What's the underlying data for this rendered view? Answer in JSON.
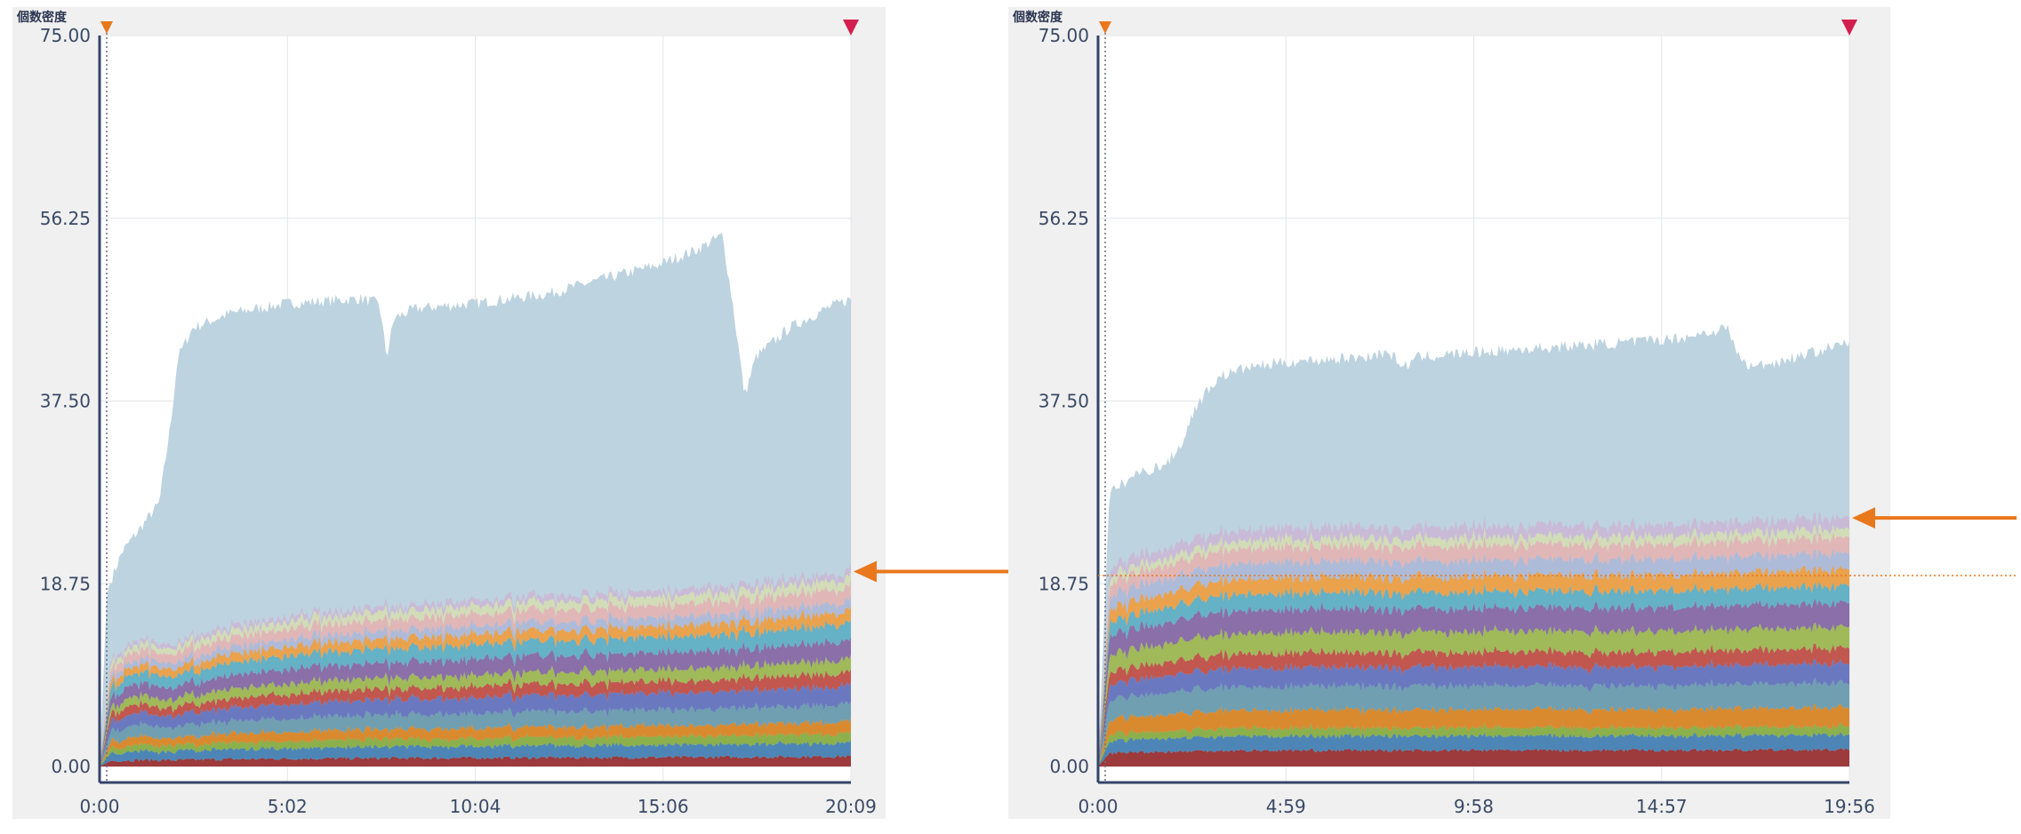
{
  "colors": {
    "background_band": "#f0f0f0",
    "plot_bg": "#ffffff",
    "grid": "#e3e6ea",
    "axis": "#34446a",
    "total_area": "#bdd3df",
    "arrow": "#e9781c",
    "start_marker": "#e9781c",
    "end_marker": "#d21f4f",
    "layers": [
      "#9c3a3c",
      "#4d86b6",
      "#8bb04c",
      "#d98a2f",
      "#6f9fb1",
      "#6a79bf",
      "#c2574f",
      "#a0b959",
      "#8a6fa8",
      "#65b1c6",
      "#eaa24d",
      "#aab6d8",
      "#e7b0b0",
      "#d6ddb0",
      "#cbb6d6"
    ]
  },
  "chart_data": [
    {
      "type": "area",
      "ylabel": "個数密度",
      "ylim": [
        0,
        75
      ],
      "y_ticks": [
        "75.00",
        "56.25",
        "37.50",
        "18.75",
        "0.00"
      ],
      "x_ticks": [
        "0:00",
        "5:02",
        "10:04",
        "15:06",
        "20:09"
      ],
      "x_range_minutes": [
        0,
        20.15
      ],
      "series": [
        {
          "values": [
            [
              0,
              0
            ],
            [
              0.2,
              18
            ],
            [
              0.6,
              22
            ],
            [
              1.2,
              25
            ],
            [
              1.6,
              27
            ],
            [
              1.9,
              35
            ],
            [
              2.1,
              42
            ],
            [
              2.5,
              45
            ],
            [
              3.5,
              46.5
            ],
            [
              5,
              47.5
            ],
            [
              7,
              48
            ],
            [
              7.5,
              47.5
            ],
            [
              7.7,
              42
            ],
            [
              7.9,
              46
            ],
            [
              8.5,
              47
            ],
            [
              10,
              47.5
            ],
            [
              12,
              48.5
            ],
            [
              13.5,
              50
            ],
            [
              15,
              51.5
            ],
            [
              16,
              53
            ],
            [
              16.7,
              54.5
            ],
            [
              17,
              47
            ],
            [
              17.3,
              38
            ],
            [
              17.6,
              42
            ],
            [
              18.5,
              45
            ],
            [
              19.5,
              47
            ],
            [
              20.15,
              48
            ]
          ]
        },
        {
          "values": [
            [
              0,
              0
            ],
            [
              0.3,
              11
            ],
            [
              1,
              13
            ],
            [
              2,
              12.5
            ],
            [
              3,
              14
            ],
            [
              5,
              15.5
            ],
            [
              8,
              16.5
            ],
            [
              10,
              17
            ],
            [
              12,
              17.5
            ],
            [
              15,
              18
            ],
            [
              17,
              18.5
            ],
            [
              18,
              19
            ],
            [
              20.15,
              20
            ]
          ]
        }
      ],
      "annotation_level": 20
    },
    {
      "type": "area",
      "ylabel": "個数密度",
      "ylim": [
        0,
        75
      ],
      "y_ticks": [
        "75.00",
        "56.25",
        "37.50",
        "18.75",
        "0.00"
      ],
      "x_ticks": [
        "0:00",
        "4:59",
        "9:58",
        "14:57",
        "19:56"
      ],
      "x_range_minutes": [
        0,
        19.93
      ],
      "series": [
        {
          "values": [
            [
              0,
              0
            ],
            [
              0.3,
              28
            ],
            [
              1,
              30
            ],
            [
              1.8,
              31
            ],
            [
              2.2,
              33
            ],
            [
              2.6,
              37
            ],
            [
              3.2,
              40
            ],
            [
              4,
              41
            ],
            [
              5,
              41.5
            ],
            [
              7,
              42
            ],
            [
              7.7,
              42.5
            ],
            [
              8.1,
              41
            ],
            [
              8.5,
              42
            ],
            [
              10,
              42.5
            ],
            [
              12,
              43
            ],
            [
              14,
              43.5
            ],
            [
              15.5,
              44
            ],
            [
              16.7,
              45
            ],
            [
              17,
              42
            ],
            [
              17.3,
              41
            ],
            [
              18,
              41.5
            ],
            [
              19.93,
              43.5
            ]
          ]
        },
        {
          "values": [
            [
              0,
              0
            ],
            [
              0.3,
              20
            ],
            [
              1,
              22
            ],
            [
              2,
              22.5
            ],
            [
              3,
              24
            ],
            [
              5,
              24.5
            ],
            [
              10,
              24.7
            ],
            [
              15,
              24.8
            ],
            [
              19.93,
              25.5
            ]
          ]
        }
      ],
      "annotation_level": 25.5
    }
  ]
}
